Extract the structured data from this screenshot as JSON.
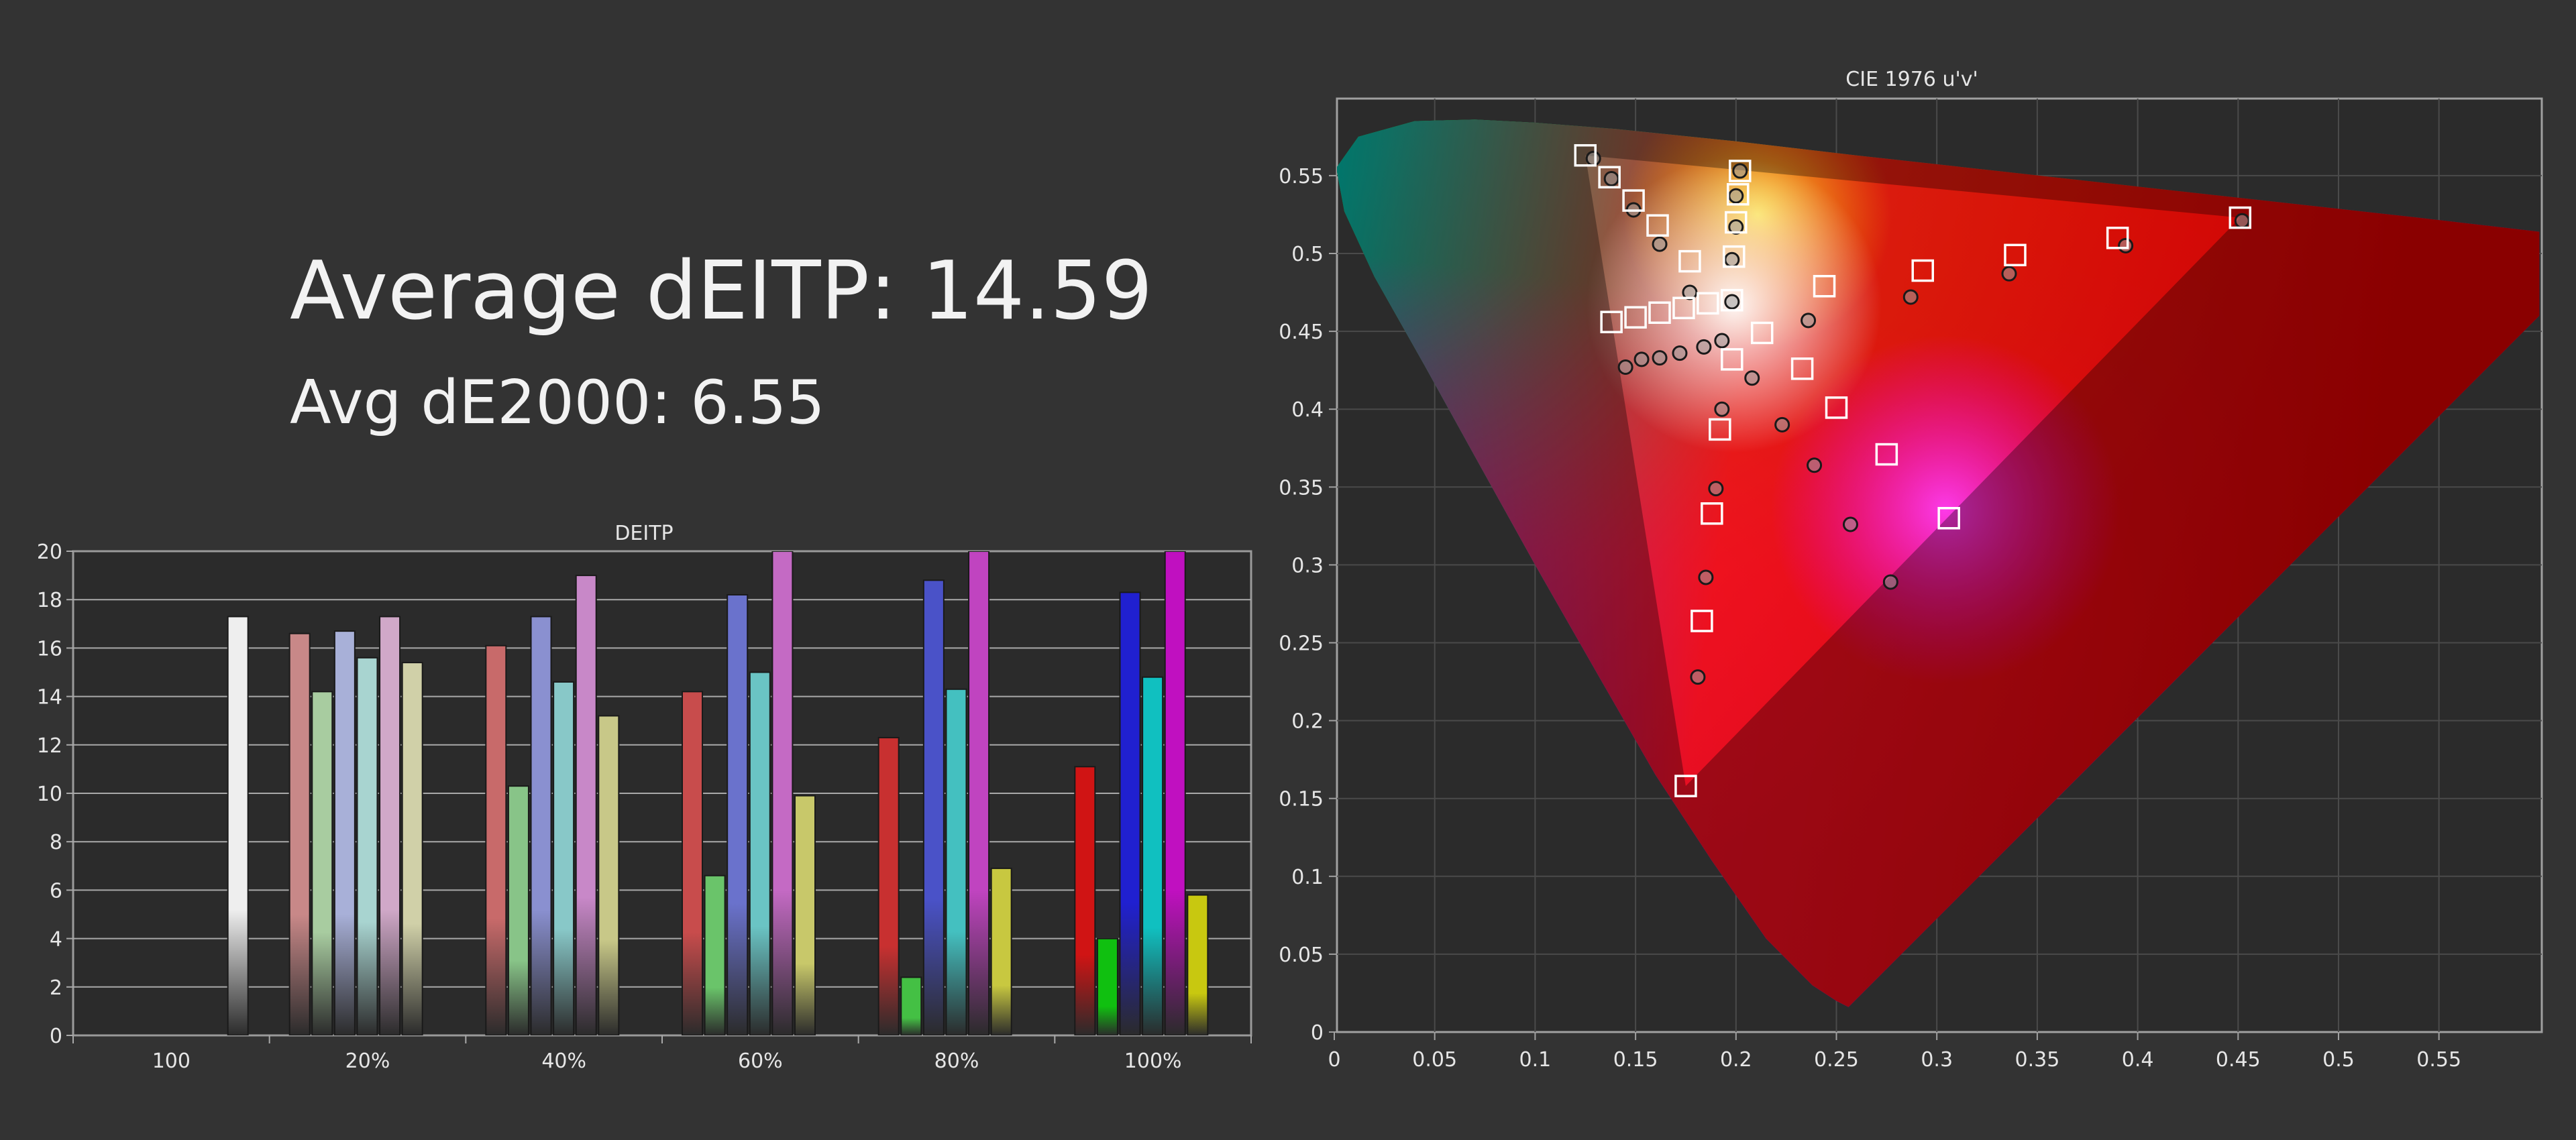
{
  "headline": {
    "avg_ditp": "Average dEITP: 14.59",
    "avg_de2000": "Avg dE2000: 6.55"
  },
  "colors": {
    "background": "#333333",
    "plot_bg": "#2b2b2b",
    "grid": "#a9a9a9",
    "text": "#f2f2f2",
    "axis_text": "#e6e6e6"
  },
  "chart_data": [
    {
      "type": "bar",
      "title": "DEITP",
      "ylim": [
        0,
        20
      ],
      "yticks": [
        0,
        2,
        4,
        6,
        8,
        10,
        12,
        14,
        16,
        18,
        20
      ],
      "categories": [
        "100",
        "20%",
        "40%",
        "60%",
        "80%",
        "100%"
      ],
      "grid": true,
      "series": [
        {
          "color": "#e6e6e6",
          "values": [
            17.3,
            null,
            null,
            null,
            null,
            null
          ]
        },
        {
          "color": "#c07a7a",
          "values": [
            null,
            16.6,
            16.1,
            14.2,
            12.3,
            11.1
          ]
        },
        {
          "color": "#8ec48e",
          "values": [
            null,
            14.2,
            10.3,
            6.6,
            2.4,
            4.0
          ]
        },
        {
          "color": "#8c94d6",
          "values": [
            null,
            16.7,
            17.3,
            18.2,
            18.8,
            18.3
          ]
        },
        {
          "color": "#8fcfcf",
          "values": [
            null,
            15.6,
            14.6,
            15.0,
            14.3,
            14.8
          ]
        },
        {
          "color": "#c690c6",
          "values": [
            null,
            17.3,
            19.0,
            20.0,
            20.0,
            20.0
          ]
        },
        {
          "color": "#cccc96",
          "values": [
            null,
            15.4,
            13.2,
            9.9,
            6.9,
            5.8
          ]
        }
      ],
      "bar_colors_by_group": [
        [
          "#eeeeee"
        ],
        [
          "#c88888",
          "#a8cca0",
          "#a8b0d8",
          "#a8d4d0",
          "#d0a8c8",
          "#d0d0a8"
        ],
        [
          "#c86a6a",
          "#88c488",
          "#8a90d0",
          "#88c8c8",
          "#c888c8",
          "#c8c888"
        ],
        [
          "#c84c4c",
          "#6ac46a",
          "#6a72cc",
          "#6ac4c4",
          "#c46ac4",
          "#c8c86a"
        ],
        [
          "#c83030",
          "#44c044",
          "#4a52c8",
          "#44c0c0",
          "#c044c0",
          "#c8c840"
        ],
        [
          "#d01414",
          "#10c010",
          "#2020d0",
          "#10c0c0",
          "#c010c0",
          "#c8c810"
        ]
      ]
    },
    {
      "type": "scatter",
      "title": "CIE 1976 u'v'",
      "xlim": [
        0,
        0.6
      ],
      "ylim": [
        0,
        0.6
      ],
      "xticks": [
        0,
        0.05,
        0.1,
        0.15,
        0.2,
        0.25,
        0.3,
        0.35,
        0.4,
        0.45,
        0.5,
        0.55
      ],
      "yticks": [
        0,
        0.05,
        0.1,
        0.15,
        0.2,
        0.25,
        0.3,
        0.35,
        0.4,
        0.45,
        0.5,
        0.55
      ],
      "grid": true,
      "gamut_triangle": [
        [
          0.451,
          0.523
        ],
        [
          0.125,
          0.563
        ],
        [
          0.175,
          0.158
        ]
      ],
      "targets": [
        [
          0.125,
          0.563
        ],
        [
          0.137,
          0.549
        ],
        [
          0.149,
          0.534
        ],
        [
          0.161,
          0.518
        ],
        [
          0.177,
          0.495
        ],
        [
          0.202,
          0.553
        ],
        [
          0.201,
          0.538
        ],
        [
          0.2,
          0.52
        ],
        [
          0.199,
          0.498
        ],
        [
          0.138,
          0.456
        ],
        [
          0.15,
          0.459
        ],
        [
          0.162,
          0.462
        ],
        [
          0.174,
          0.465
        ],
        [
          0.186,
          0.468
        ],
        [
          0.198,
          0.47
        ],
        [
          0.213,
          0.449
        ],
        [
          0.198,
          0.432
        ],
        [
          0.244,
          0.479
        ],
        [
          0.293,
          0.489
        ],
        [
          0.339,
          0.499
        ],
        [
          0.39,
          0.51
        ],
        [
          0.451,
          0.523
        ],
        [
          0.233,
          0.426
        ],
        [
          0.25,
          0.401
        ],
        [
          0.275,
          0.371
        ],
        [
          0.306,
          0.33
        ],
        [
          0.192,
          0.387
        ],
        [
          0.188,
          0.333
        ],
        [
          0.183,
          0.264
        ],
        [
          0.175,
          0.158
        ]
      ],
      "measured": [
        [
          0.129,
          0.561
        ],
        [
          0.138,
          0.548
        ],
        [
          0.149,
          0.528
        ],
        [
          0.162,
          0.506
        ],
        [
          0.202,
          0.553
        ],
        [
          0.2,
          0.537
        ],
        [
          0.2,
          0.517
        ],
        [
          0.198,
          0.496
        ],
        [
          0.198,
          0.469
        ],
        [
          0.145,
          0.427
        ],
        [
          0.153,
          0.432
        ],
        [
          0.162,
          0.433
        ],
        [
          0.172,
          0.436
        ],
        [
          0.184,
          0.44
        ],
        [
          0.193,
          0.444
        ],
        [
          0.177,
          0.475
        ],
        [
          0.208,
          0.42
        ],
        [
          0.193,
          0.4
        ],
        [
          0.236,
          0.457
        ],
        [
          0.287,
          0.472
        ],
        [
          0.336,
          0.487
        ],
        [
          0.394,
          0.505
        ],
        [
          0.452,
          0.521
        ],
        [
          0.223,
          0.39
        ],
        [
          0.239,
          0.364
        ],
        [
          0.257,
          0.326
        ],
        [
          0.277,
          0.289
        ],
        [
          0.19,
          0.349
        ],
        [
          0.185,
          0.292
        ],
        [
          0.181,
          0.228
        ]
      ]
    }
  ]
}
